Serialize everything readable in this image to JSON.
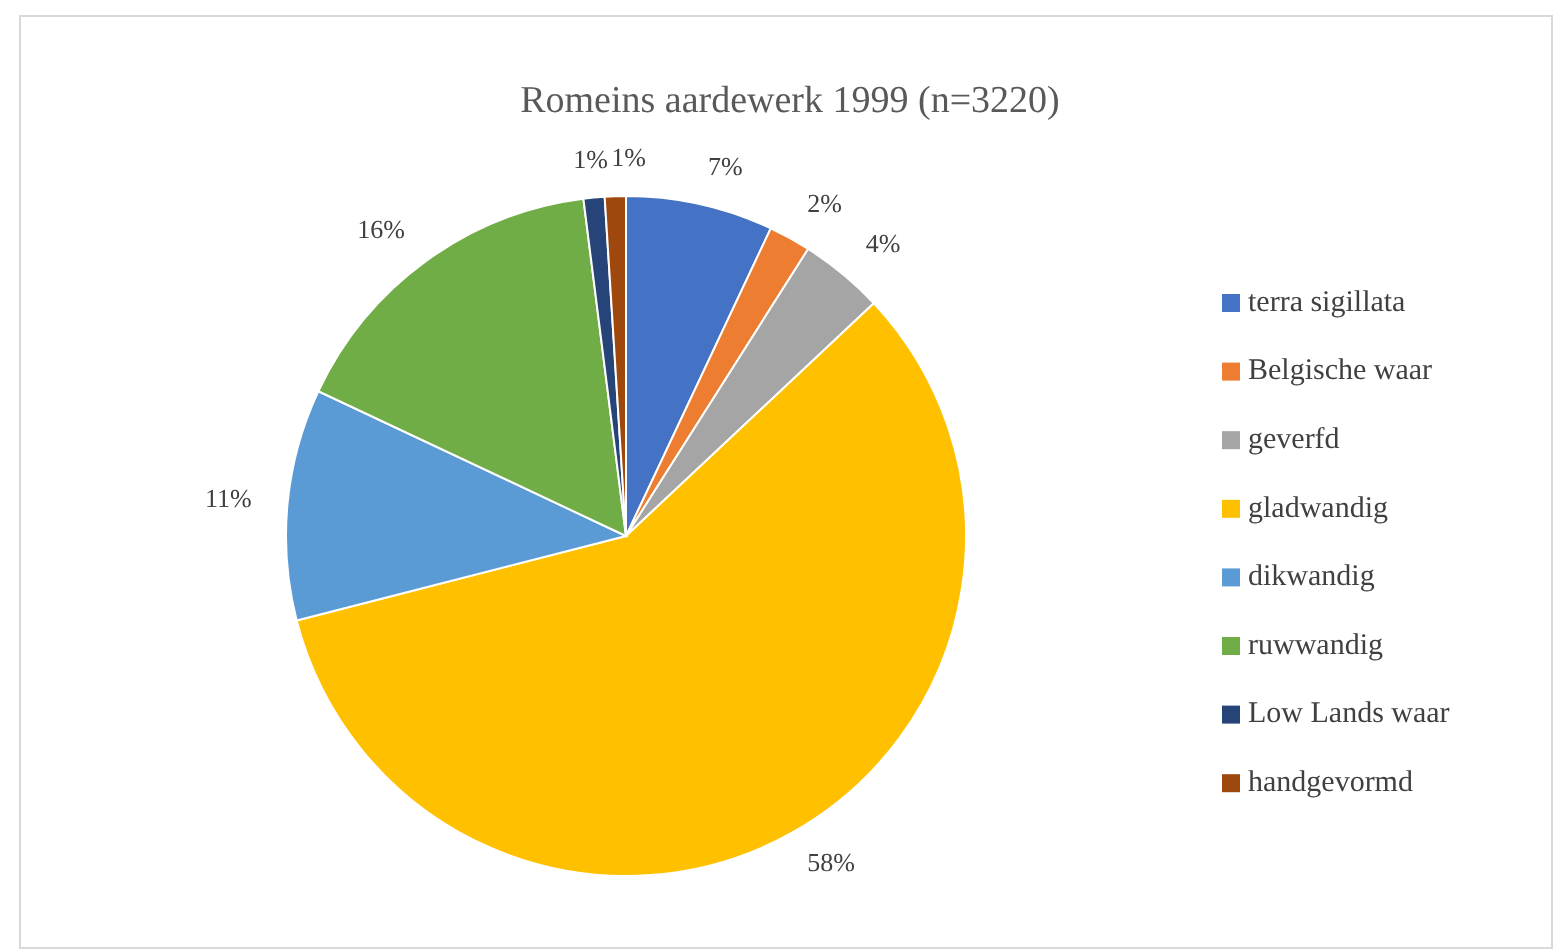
{
  "chart_data": {
    "type": "pie",
    "title": "Romeins aardewerk 1999 (n=3220)",
    "categories": [
      "terra sigillata",
      "Belgische waar",
      "geverfd",
      "gladwandig",
      "dikwandig",
      "ruwwandig",
      "Low Lands waar",
      "handgevormd"
    ],
    "values": [
      7,
      2,
      4,
      58,
      11,
      16,
      1,
      1
    ],
    "colors": [
      "#4472c4",
      "#ed7d31",
      "#a5a5a5",
      "#ffc000",
      "#5b9bd5",
      "#70ad47",
      "#264478",
      "#9e480e"
    ],
    "value_labels": [
      "7%",
      "2%",
      "4%",
      "58%",
      "11%",
      "16%",
      "1%",
      "1%"
    ],
    "legend": "right"
  }
}
